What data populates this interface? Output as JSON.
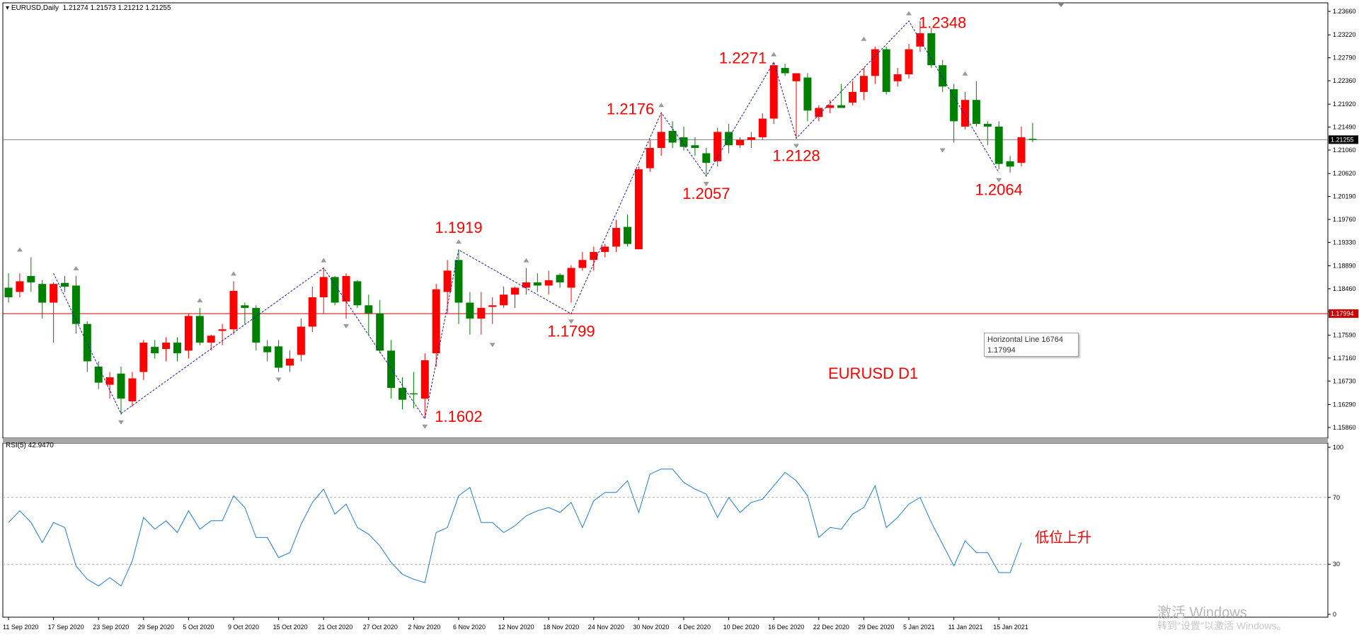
{
  "header": {
    "title_arrow": "▾",
    "title": "EURUSD,Daily  1.21274 1.21573 1.21212 1.21255",
    "rsi_label": "RSI(5) 42.9470"
  },
  "tooltip": {
    "line1": "Horizontal Line 16764",
    "line2": "1.17994"
  },
  "watermark": {
    "line1": "激活 Windows",
    "line2": "转到\"设置\"以激活 Windows。"
  },
  "colors": {
    "up": "#ff0000",
    "down": "#008000",
    "rsi": "#1e7bd4",
    "hline": "#cc0000",
    "zigzag": "#1a1aa8"
  },
  "chart_data": [
    {
      "type": "candlestick",
      "title": "EURUSD D1",
      "ylim": [
        1.1566,
        1.2382
      ],
      "y_ticks": [
        "1.23660",
        "1.23220",
        "1.22790",
        "1.22360",
        "1.21920",
        "1.21490",
        "1.21060",
        "1.20620",
        "1.20190",
        "1.19760",
        "1.19330",
        "1.18890",
        "1.18460",
        "1.18030",
        "1.17590",
        "1.17160",
        "1.16730",
        "1.16290",
        "1.15860"
      ],
      "x_ticks": [
        {
          "i": 0,
          "label": "11 Sep 2020"
        },
        {
          "i": 4,
          "label": "17 Sep 2020"
        },
        {
          "i": 8,
          "label": "23 Sep 2020"
        },
        {
          "i": 12,
          "label": "29 Sep 2020"
        },
        {
          "i": 16,
          "label": "5 Oct 2020"
        },
        {
          "i": 20,
          "label": "9 Oct 2020"
        },
        {
          "i": 24,
          "label": "15 Oct 2020"
        },
        {
          "i": 28,
          "label": "21 Oct 2020"
        },
        {
          "i": 32,
          "label": "27 Oct 2020"
        },
        {
          "i": 36,
          "label": "2 Nov 2020"
        },
        {
          "i": 40,
          "label": "6 Nov 2020"
        },
        {
          "i": 44,
          "label": "12 Nov 2020"
        },
        {
          "i": 48,
          "label": "18 Nov 2020"
        },
        {
          "i": 52,
          "label": "24 Nov 2020"
        },
        {
          "i": 56,
          "label": "30 Nov 2020"
        },
        {
          "i": 60,
          "label": "4 Dec 2020"
        },
        {
          "i": 64,
          "label": "10 Dec 2020"
        },
        {
          "i": 68,
          "label": "16 Dec 2020"
        },
        {
          "i": 72,
          "label": "22 Dec 2020"
        },
        {
          "i": 76,
          "label": "29 Dec 2020"
        },
        {
          "i": 80,
          "label": "5 Jan 2021"
        },
        {
          "i": 84,
          "label": "11 Jan 2021"
        },
        {
          "i": 88,
          "label": "15 Jan 2021"
        }
      ],
      "ohlc": [
        [
          1.1848,
          1.1875,
          1.182,
          1.183
        ],
        [
          1.184,
          1.1875,
          1.183,
          1.186
        ],
        [
          1.187,
          1.1905,
          1.184,
          1.1858
        ],
        [
          1.1855,
          1.1862,
          1.179,
          1.182
        ],
        [
          1.182,
          1.1858,
          1.1745,
          1.1855
        ],
        [
          1.1857,
          1.187,
          1.184,
          1.185
        ],
        [
          1.1852,
          1.187,
          1.1762,
          1.178
        ],
        [
          1.178,
          1.1785,
          1.169,
          1.171
        ],
        [
          1.17,
          1.171,
          1.1658,
          1.167
        ],
        [
          1.1666,
          1.169,
          1.164,
          1.168
        ],
        [
          1.1687,
          1.17,
          1.161,
          1.164
        ],
        [
          1.1635,
          1.169,
          1.1625,
          1.1678
        ],
        [
          1.169,
          1.175,
          1.1675,
          1.1745
        ],
        [
          1.1737,
          1.175,
          1.1715,
          1.1725
        ],
        [
          1.1733,
          1.1755,
          1.171,
          1.1745
        ],
        [
          1.1745,
          1.1755,
          1.171,
          1.1725
        ],
        [
          1.173,
          1.18,
          1.1715,
          1.1795
        ],
        [
          1.1795,
          1.181,
          1.174,
          1.1745
        ],
        [
          1.1745,
          1.176,
          1.173,
          1.1758
        ],
        [
          1.1767,
          1.178,
          1.174,
          1.177
        ],
        [
          1.177,
          1.186,
          1.176,
          1.1842
        ],
        [
          1.1815,
          1.182,
          1.178,
          1.181
        ],
        [
          1.181,
          1.1815,
          1.173,
          1.1745
        ],
        [
          1.1738,
          1.175,
          1.171,
          1.1727
        ],
        [
          1.1738,
          1.175,
          1.169,
          1.1698
        ],
        [
          1.1702,
          1.173,
          1.169,
          1.1715
        ],
        [
          1.1722,
          1.179,
          1.171,
          1.1775
        ],
        [
          1.1775,
          1.185,
          1.1765,
          1.183
        ],
        [
          1.183,
          1.1885,
          1.18,
          1.1868
        ],
        [
          1.1868,
          1.187,
          1.1815,
          1.182
        ],
        [
          1.1822,
          1.1875,
          1.179,
          1.187
        ],
        [
          1.186,
          1.1862,
          1.181,
          1.1815
        ],
        [
          1.1815,
          1.1835,
          1.176,
          1.18
        ],
        [
          1.18,
          1.1825,
          1.1725,
          1.173
        ],
        [
          1.173,
          1.175,
          1.164,
          1.166
        ],
        [
          1.166,
          1.168,
          1.162,
          1.1638
        ],
        [
          1.165,
          1.169,
          1.1622,
          1.1648
        ],
        [
          1.164,
          1.1725,
          1.1605,
          1.1712
        ],
        [
          1.1725,
          1.1855,
          1.17,
          1.1845
        ],
        [
          1.184,
          1.19,
          1.18,
          1.188
        ],
        [
          1.19,
          1.192,
          1.178,
          1.182
        ],
        [
          1.182,
          1.184,
          1.176,
          1.179
        ],
        [
          1.179,
          1.184,
          1.176,
          1.181
        ],
        [
          1.1812,
          1.183,
          1.178,
          1.1815
        ],
        [
          1.1815,
          1.185,
          1.181,
          1.1835
        ],
        [
          1.1835,
          1.185,
          1.181,
          1.1848
        ],
        [
          1.1848,
          1.1885,
          1.1835,
          1.1858
        ],
        [
          1.1858,
          1.1875,
          1.184,
          1.1852
        ],
        [
          1.1852,
          1.188,
          1.1835,
          1.1862
        ],
        [
          1.1872,
          1.1875,
          1.1848,
          1.1858
        ],
        [
          1.1848,
          1.189,
          1.182,
          1.1885
        ],
        [
          1.1885,
          1.1915,
          1.188,
          1.19
        ],
        [
          1.19,
          1.1925,
          1.188,
          1.1915
        ],
        [
          1.1915,
          1.193,
          1.1905,
          1.1925
        ],
        [
          1.1925,
          1.1975,
          1.1915,
          1.196
        ],
        [
          1.1962,
          1.1985,
          1.1925,
          1.193
        ],
        [
          1.192,
          1.2075,
          1.192,
          1.207
        ],
        [
          1.2072,
          1.2125,
          1.2065,
          1.211
        ],
        [
          1.211,
          1.2176,
          1.2095,
          1.214
        ],
        [
          1.2142,
          1.216,
          1.211,
          1.212
        ],
        [
          1.213,
          1.215,
          1.2105,
          1.2112
        ],
        [
          1.2115,
          1.213,
          1.2095,
          1.211
        ],
        [
          1.21,
          1.211,
          1.2057,
          1.2082
        ],
        [
          1.2085,
          1.2148,
          1.2075,
          1.214
        ],
        [
          1.214,
          1.2155,
          1.21,
          1.2115
        ],
        [
          1.2115,
          1.213,
          1.211,
          1.2125
        ],
        [
          1.2125,
          1.214,
          1.211,
          1.213
        ],
        [
          1.213,
          1.2175,
          1.2125,
          1.2165
        ],
        [
          1.2165,
          1.2271,
          1.2155,
          1.2265
        ],
        [
          1.226,
          1.2268,
          1.2245,
          1.225
        ],
        [
          1.2235,
          1.225,
          1.2128,
          1.225
        ],
        [
          1.2242,
          1.225,
          1.216,
          1.218
        ],
        [
          1.2168,
          1.219,
          1.216,
          1.2185
        ],
        [
          1.2185,
          1.22,
          1.2175,
          1.219
        ],
        [
          1.219,
          1.223,
          1.2185,
          1.2185
        ],
        [
          1.2195,
          1.2235,
          1.219,
          1.2215
        ],
        [
          1.2215,
          1.226,
          1.22,
          1.2245
        ],
        [
          1.2245,
          1.23,
          1.223,
          1.2295
        ],
        [
          1.2295,
          1.23,
          1.221,
          1.2215
        ],
        [
          1.2235,
          1.226,
          1.2225,
          1.2248
        ],
        [
          1.2248,
          1.2305,
          1.224,
          1.2295
        ],
        [
          1.23,
          1.2348,
          1.229,
          1.2325
        ],
        [
          1.2325,
          1.2335,
          1.226,
          1.2265
        ],
        [
          1.2265,
          1.2275,
          1.2215,
          1.2225
        ],
        [
          1.222,
          1.223,
          1.212,
          1.216
        ],
        [
          1.215,
          1.2215,
          1.2145,
          1.22
        ],
        [
          1.22,
          1.2235,
          1.215,
          1.2155
        ],
        [
          1.2155,
          1.216,
          1.2115,
          1.215
        ],
        [
          1.215,
          1.216,
          1.207,
          1.208
        ],
        [
          1.2085,
          1.2095,
          1.2064,
          1.2075
        ],
        [
          1.2082,
          1.215,
          1.2075,
          1.213
        ],
        [
          1.2127,
          1.2157,
          1.2121,
          1.2125
        ]
      ],
      "zigzag": [
        {
          "i": 4,
          "v": 1.1875
        },
        {
          "i": 10,
          "v": 1.1612
        },
        {
          "i": 28,
          "v": 1.1885
        },
        {
          "i": 37,
          "v": 1.1602
        },
        {
          "i": 40,
          "v": 1.1919
        },
        {
          "i": 50,
          "v": 1.1799
        },
        {
          "i": 58,
          "v": 1.2176
        },
        {
          "i": 62,
          "v": 1.2057
        },
        {
          "i": 68,
          "v": 1.2271
        },
        {
          "i": 70,
          "v": 1.2128
        },
        {
          "i": 80,
          "v": 1.2348
        },
        {
          "i": 88,
          "v": 1.2064
        }
      ],
      "fractal_highs": [
        {
          "i": 1,
          "v": 1.1905
        },
        {
          "i": 6,
          "v": 1.187
        },
        {
          "i": 17,
          "v": 1.181
        },
        {
          "i": 20,
          "v": 1.186
        },
        {
          "i": 28,
          "v": 1.1885
        },
        {
          "i": 40,
          "v": 1.192
        },
        {
          "i": 46,
          "v": 1.1885
        },
        {
          "i": 58,
          "v": 1.2176
        },
        {
          "i": 68,
          "v": 1.2271
        },
        {
          "i": 76,
          "v": 1.23
        },
        {
          "i": 80,
          "v": 1.2348
        },
        {
          "i": 85,
          "v": 1.2235
        }
      ],
      "fractal_lows": [
        {
          "i": 10,
          "v": 1.161
        },
        {
          "i": 24,
          "v": 1.169
        },
        {
          "i": 30,
          "v": 1.179
        },
        {
          "i": 37,
          "v": 1.1602
        },
        {
          "i": 43,
          "v": 1.1755
        },
        {
          "i": 50,
          "v": 1.1799
        },
        {
          "i": 62,
          "v": 1.2057
        },
        {
          "i": 70,
          "v": 1.2128
        },
        {
          "i": 83,
          "v": 1.212
        },
        {
          "i": 88,
          "v": 1.2064
        }
      ],
      "annotations": [
        {
          "text": "1.2348",
          "i": 80,
          "v": 1.2348,
          "pos": "right-top"
        },
        {
          "text": "1.2271",
          "i": 68,
          "v": 1.2271,
          "pos": "left"
        },
        {
          "text": "1.2176",
          "i": 58,
          "v": 1.2176,
          "pos": "left"
        },
        {
          "text": "1.2128",
          "i": 70,
          "v": 1.2128,
          "pos": "below"
        },
        {
          "text": "1.2057",
          "i": 62,
          "v": 1.2057,
          "pos": "below"
        },
        {
          "text": "1.2064",
          "i": 88,
          "v": 1.2064,
          "pos": "below"
        },
        {
          "text": "1.1919",
          "i": 40,
          "v": 1.1919,
          "pos": "above"
        },
        {
          "text": "1.1799",
          "i": 50,
          "v": 1.1799,
          "pos": "below"
        },
        {
          "text": "1.1602",
          "i": 37,
          "v": 1.1602,
          "pos": "right"
        }
      ],
      "label_text": "EURUSD D1",
      "horizontal_lines": [
        {
          "v": 1.17994,
          "label": "1.17994",
          "color": "#cc0000"
        },
        {
          "v": 1.21255,
          "label": "1.21255",
          "color": "#808080"
        }
      ]
    },
    {
      "type": "line",
      "name": "RSI(5) 42.9470",
      "ylim": [
        0,
        100
      ],
      "y_ticks": [
        "100",
        "70",
        "30",
        "0"
      ],
      "levels": [
        70,
        30
      ],
      "values": [
        55,
        62,
        55,
        43,
        55,
        52,
        29,
        21,
        17,
        22,
        17,
        32,
        58,
        51,
        56,
        49,
        62,
        51,
        56,
        56,
        71,
        64,
        46,
        46,
        34,
        37,
        54,
        67,
        75,
        60,
        66,
        52,
        48,
        41,
        31,
        24,
        21,
        19,
        49,
        52,
        71,
        76,
        55,
        55,
        49,
        53,
        59,
        62,
        64,
        61,
        67,
        52,
        68,
        73,
        73,
        80,
        61,
        84,
        87,
        87,
        79,
        75,
        72,
        58,
        70,
        61,
        67,
        69,
        77,
        85,
        80,
        71,
        46,
        52,
        51,
        60,
        64,
        77,
        52,
        58,
        66,
        70,
        55,
        42,
        29,
        44,
        37,
        37,
        25,
        25,
        43
      ]
    }
  ],
  "annotation_cn": "低位上升"
}
